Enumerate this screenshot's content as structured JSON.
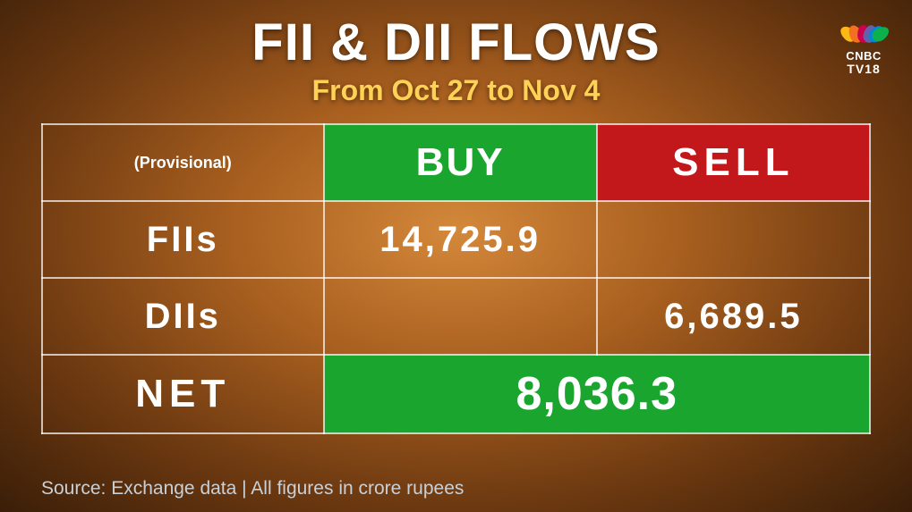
{
  "title": "FII & DII FLOWS",
  "subtitle": "From Oct 27 to Nov 4",
  "logo": {
    "brand": "CNBC",
    "channel": "TV18"
  },
  "table": {
    "header": {
      "provisional_label": "(Provisional)",
      "buy_label": "BUY",
      "sell_label": "SELL"
    },
    "rows": [
      {
        "label": "FIIs",
        "buy": "14,725.9",
        "sell": ""
      },
      {
        "label": "DIIs",
        "buy": "",
        "sell": "6,689.5"
      }
    ],
    "net": {
      "label": "NET",
      "value": "8,036.3"
    }
  },
  "source": "Source: Exchange data | All figures in crore rupees",
  "colors": {
    "buy_bg": "#1aa62e",
    "sell_bg": "#c2171b",
    "net_bg": "#1aa62e",
    "title_color": "#ffffff",
    "subtitle_color": "#ffd257",
    "text_color": "#ffffff",
    "border_color": "rgba(255,255,255,0.7)",
    "bg_gradient_inner": "#d4883a",
    "bg_gradient_outer": "#3a1e08"
  }
}
